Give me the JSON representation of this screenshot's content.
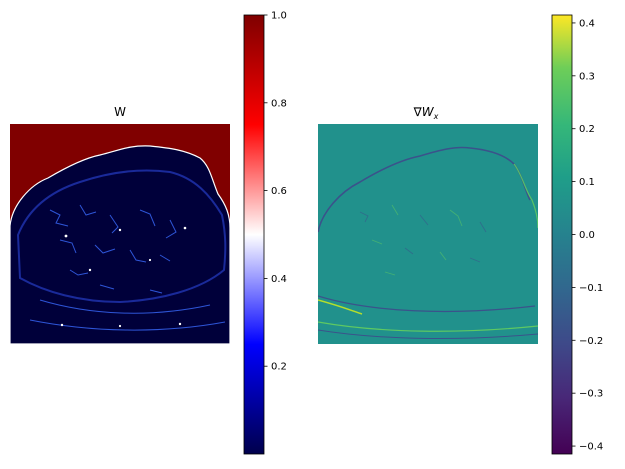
{
  "chart_data": [
    {
      "type": "heatmap",
      "title": "W",
      "colormap": "seismic",
      "colorbar": {
        "ticks": [
          "1.0",
          "0.8",
          "0.6",
          "0.4",
          "0.2"
        ],
        "tick_values": [
          1.0,
          0.8,
          0.6,
          0.4,
          0.2
        ],
        "range": [
          0.0,
          1.0
        ]
      },
      "colors": {
        "background_region": "#800000",
        "body_region": "#00003a",
        "edges": "#ffffff",
        "highlights": "#3a6bff"
      }
    },
    {
      "type": "heatmap",
      "title": "∇W",
      "title_subscript": "x",
      "colormap": "viridis",
      "colorbar": {
        "ticks": [
          "0.4",
          "0.3",
          "0.2",
          "0.1",
          "0.0",
          "−0.1",
          "−0.2",
          "−0.3",
          "−0.4"
        ],
        "tick_values": [
          0.4,
          0.3,
          0.2,
          0.1,
          0.0,
          -0.1,
          -0.2,
          -0.3,
          -0.4
        ],
        "range": [
          -0.415,
          0.415
        ]
      },
      "colors": {
        "background": "#21918c",
        "negative_edges": "#3b528b",
        "positive_edges": "#5ec962"
      }
    }
  ]
}
